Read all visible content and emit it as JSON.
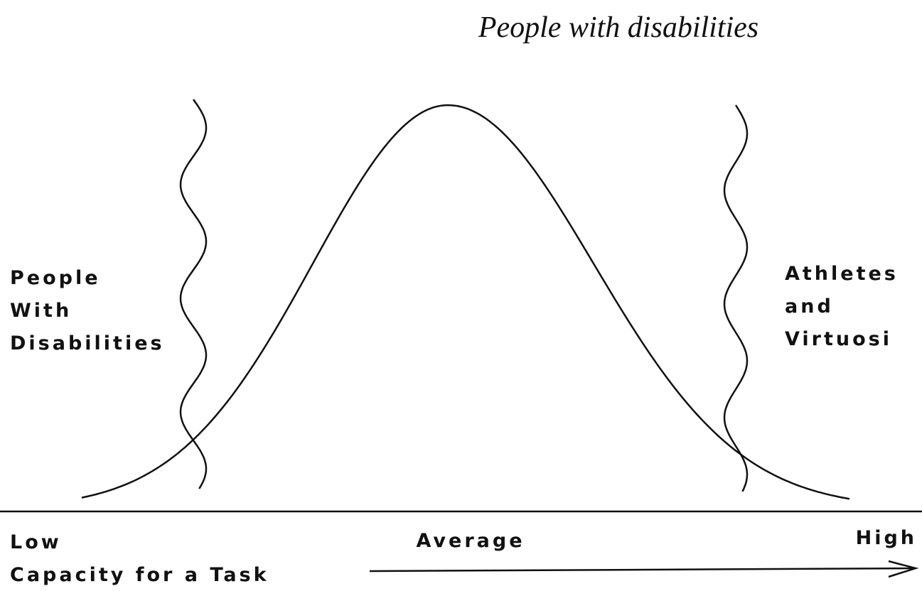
{
  "title": "People with disabilities",
  "left_label": [
    "People",
    "With",
    "Disabilities"
  ],
  "right_label": [
    "Athletes",
    "and",
    "Virtuosi"
  ],
  "axis": {
    "low": "Low",
    "average": "Average",
    "high": "High",
    "caption": "Capacity for a Task"
  }
}
